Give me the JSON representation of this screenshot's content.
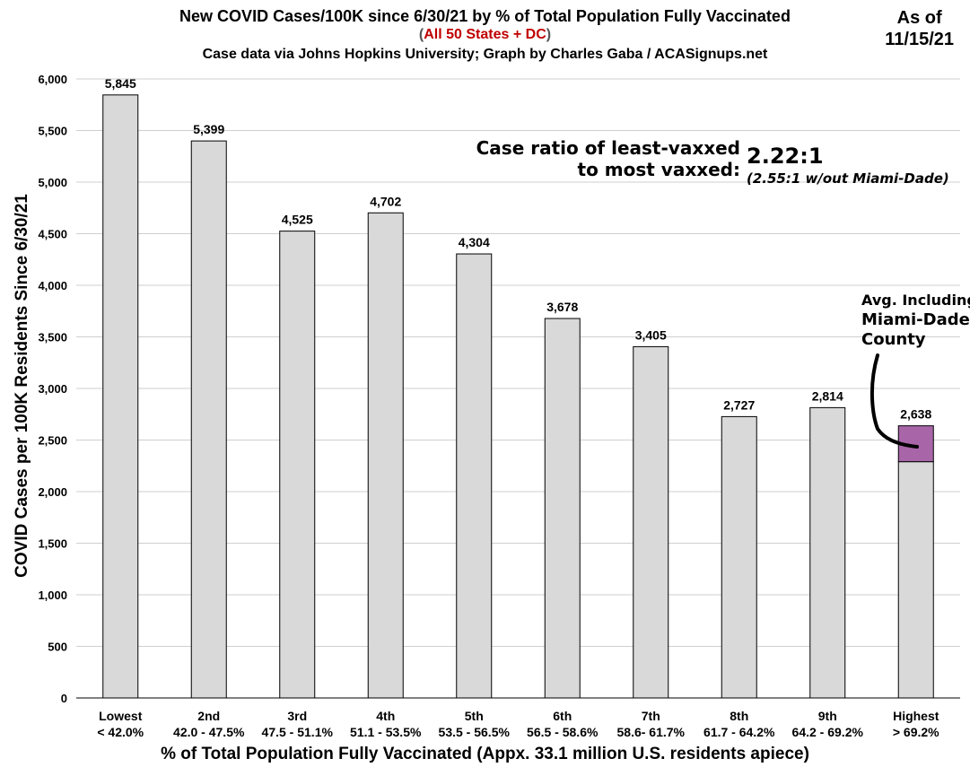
{
  "header": {
    "title": "New COVID Cases/100K since 6/30/21 by % of Total Population Fully Vaccinated",
    "subtitle_open": "(",
    "subtitle_red": "All 50 States + DC",
    "subtitle_close": ")",
    "source": "Case data via Johns Hopkins University; Graph by Charles Gaba / ACASignups.net",
    "as_of_line1": "As of",
    "as_of_line2": "11/15/21"
  },
  "annotations": {
    "ratio_label_line1": "Case ratio of least-vaxxed",
    "ratio_label_line2": "to most vaxxed:",
    "ratio_value": "2.22:1",
    "ratio_note": "(2.55:1 w/out Miami-Dade)",
    "callout_line1": "Avg. Including",
    "callout_line2": "Miami-Dade",
    "callout_line3": "County"
  },
  "colors": {
    "bar_fill": "#d9d9d9",
    "bar_stroke": "#000000",
    "highlight_fill": "#a866a8",
    "grid": "#cfcfcf"
  },
  "chart_data": {
    "type": "bar",
    "title": "New COVID Cases/100K since 6/30/21 by % of Total Population Fully Vaccinated",
    "xlabel": "% of Total Population Fully Vaccinated (Appx. 33.1 million U.S. residents apiece)",
    "ylabel": "COVID Cases per 100K Residents Since 6/30/21",
    "ylim": [
      0,
      6000
    ],
    "yticks": [
      0,
      500,
      1000,
      1500,
      2000,
      2500,
      3000,
      3500,
      4000,
      4500,
      5000,
      5500,
      6000
    ],
    "ytick_labels": [
      "0",
      "500",
      "1,000",
      "1,500",
      "2,000",
      "2,500",
      "3,000",
      "3,500",
      "4,000",
      "4,500",
      "5,000",
      "5,500",
      "6,000"
    ],
    "grid": true,
    "categories": [
      "Lowest",
      "2nd",
      "3rd",
      "4th",
      "5th",
      "6th",
      "7th",
      "8th",
      "9th",
      "Highest"
    ],
    "category_ranges": [
      "< 42.0%",
      "42.0 - 47.5%",
      "47.5 - 51.1%",
      "51.1 - 53.5%",
      "53.5 - 56.5%",
      "56.5 - 58.6%",
      "58.6- 61.7%",
      "61.7 - 64.2%",
      "64.2 - 69.2%",
      "> 69.2%"
    ],
    "values": [
      5845,
      5399,
      4525,
      4702,
      4304,
      3678,
      3405,
      2727,
      2814,
      2638
    ],
    "data_labels": [
      "5,845",
      "5,399",
      "4,525",
      "4,702",
      "4,304",
      "3,678",
      "3,405",
      "2,727",
      "2,814",
      "2,638"
    ],
    "highlight": {
      "category": "Highest",
      "base_value": 2290,
      "top_value": 2638
    }
  }
}
